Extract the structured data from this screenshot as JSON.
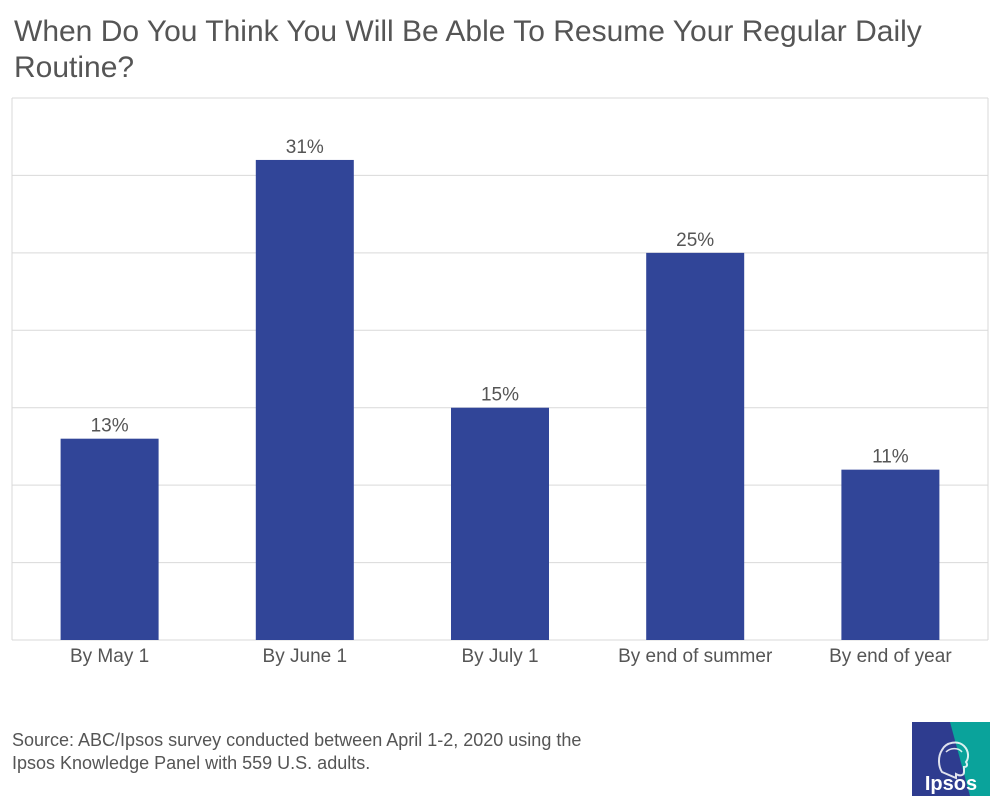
{
  "chart_data": {
    "type": "bar",
    "title": "When Do You Think You Will Be Able To Resume Your Regular Daily Routine?",
    "categories": [
      "By May 1",
      "By June 1",
      "By July 1",
      "By end of summer",
      "By end of year"
    ],
    "values": [
      13,
      31,
      15,
      25,
      11
    ],
    "value_labels": [
      "13%",
      "31%",
      "15%",
      "25%",
      "11%"
    ],
    "ylim": [
      0,
      35
    ],
    "gridline_step": 5,
    "xlabel": "",
    "ylabel": "",
    "bar_color": "#314598",
    "grid": true,
    "legend": "none"
  },
  "source": {
    "line1": "Source: ABC/Ipsos survey conducted between April 1-2, 2020 using the",
    "line2": "Ipsos Knowledge Panel with 559 U.S. adults."
  },
  "logo": {
    "text": "Ipsos",
    "colors": {
      "blue": "#2e3c8f",
      "teal": "#0aa39b"
    }
  },
  "colors": {
    "text": "#555555",
    "grid": "#d9d9d9"
  }
}
